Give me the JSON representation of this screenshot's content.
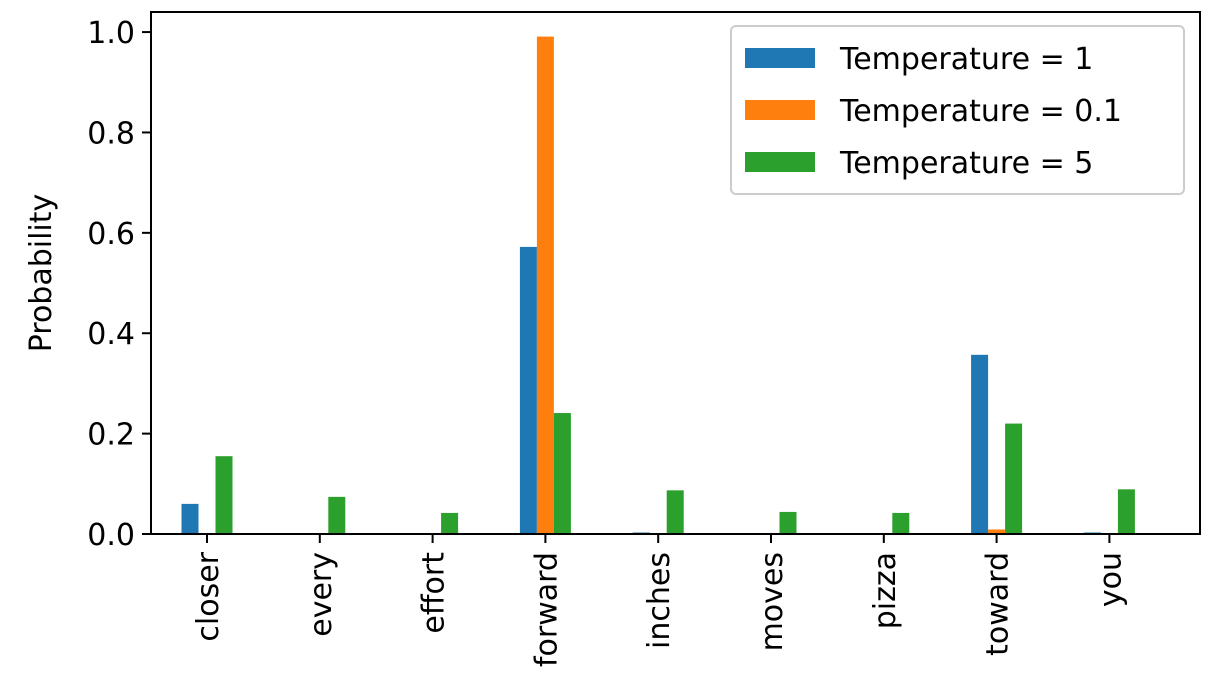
{
  "chart_data": {
    "type": "bar",
    "categories": [
      "closer",
      "every",
      "effort",
      "forward",
      "inches",
      "moves",
      "pizza",
      "toward",
      "you"
    ],
    "series": [
      {
        "name": "Temperature = 1",
        "color": "#1f77b4",
        "values": [
          0.06,
          0.0,
          0.0,
          0.572,
          0.003,
          0.0,
          0.0,
          0.357,
          0.003
        ]
      },
      {
        "name": "Temperature = 0.1",
        "color": "#ff7f0e",
        "values": [
          0.0,
          0.0,
          0.0,
          0.991,
          0.0,
          0.0,
          0.0,
          0.009,
          0.0
        ]
      },
      {
        "name": "Temperature = 5",
        "color": "#2ca02c",
        "values": [
          0.155,
          0.074,
          0.042,
          0.241,
          0.087,
          0.044,
          0.042,
          0.22,
          0.089
        ]
      }
    ],
    "title": "",
    "xlabel": "",
    "ylabel": "Probability",
    "ylim": [
      0,
      1.04
    ],
    "yticks": [
      "0.0",
      "0.2",
      "0.4",
      "0.6",
      "0.8",
      "1.0"
    ],
    "grid": false,
    "legend_position": "top-right"
  }
}
